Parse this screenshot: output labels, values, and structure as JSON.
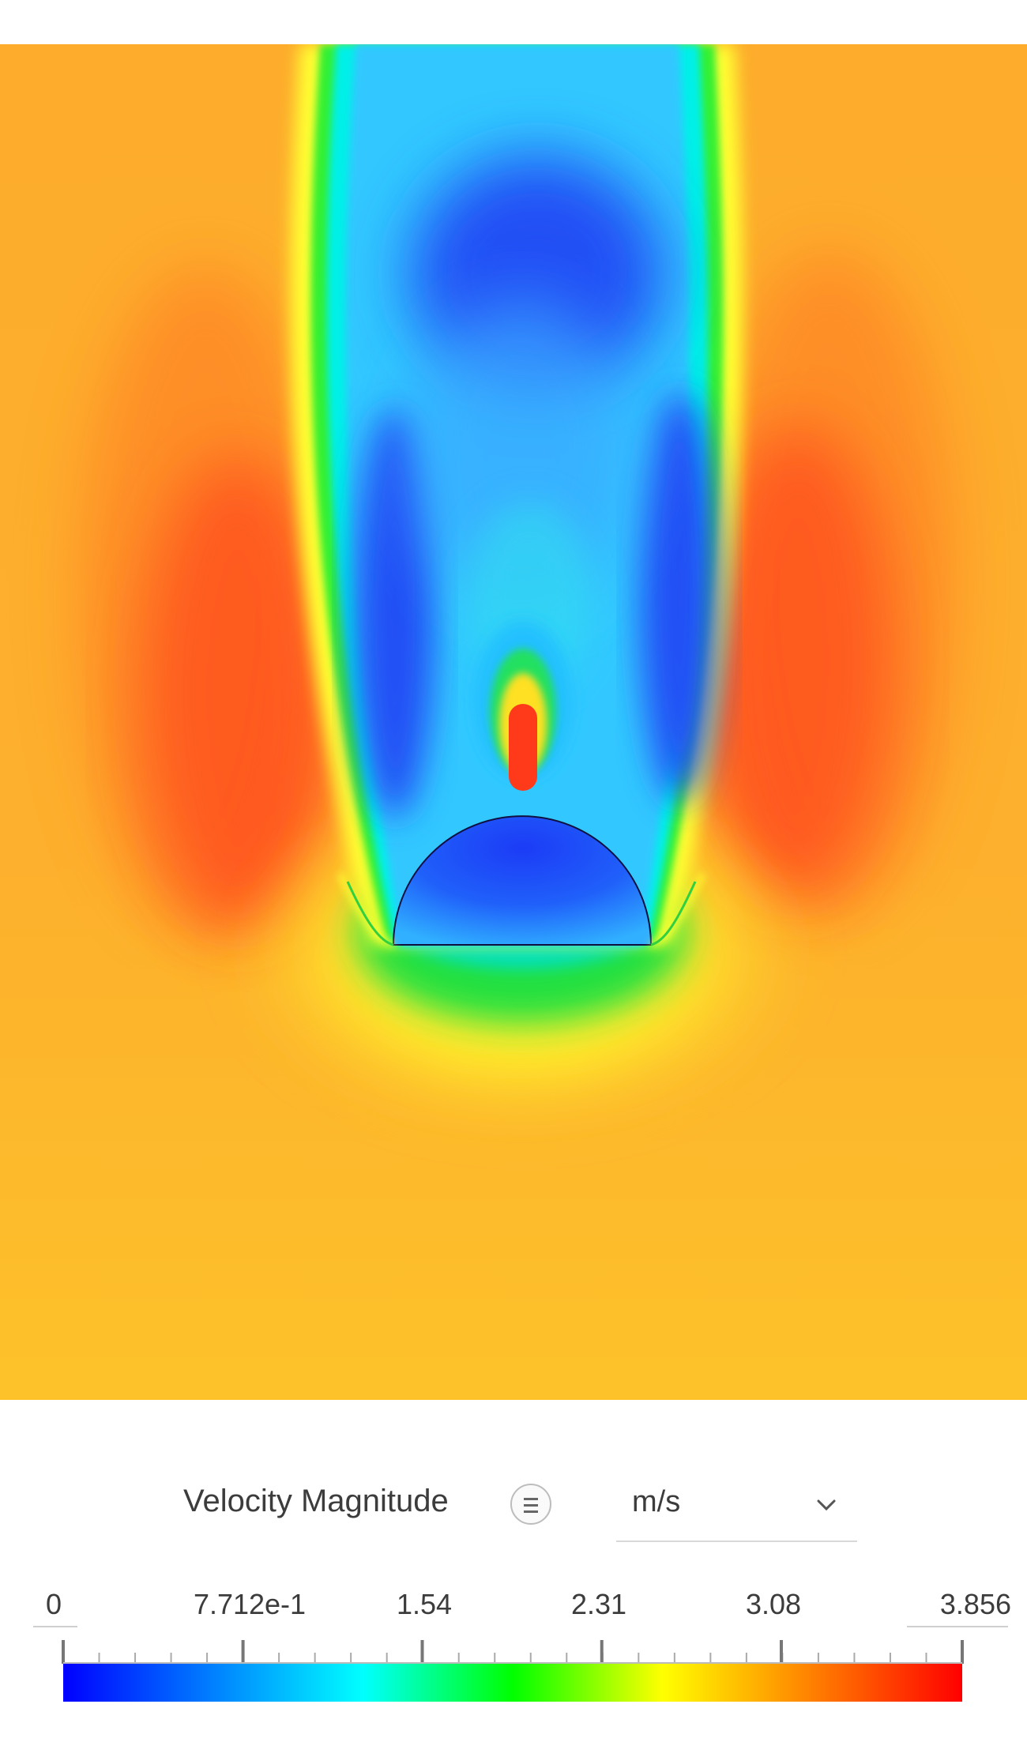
{
  "scalar": {
    "label": "Velocity Magnitude",
    "menu_icon": "menu-lines-icon",
    "unit": "m/s",
    "unit_icon": "chevron-down-icon"
  },
  "colorbar": {
    "min": 0,
    "max": 3.856,
    "tick_labels": [
      "0",
      "7.712e-1",
      "1.54",
      "2.31",
      "3.08",
      "3.856"
    ],
    "tick_values": [
      0,
      0.7712,
      1.54,
      2.31,
      3.08,
      3.856
    ],
    "colormap": [
      "#0000ff",
      "#0080ff",
      "#00ffff",
      "#00ff00",
      "#ffff00",
      "#ff8000",
      "#ff0000"
    ]
  },
  "field": {
    "free_stream_color": "#fdb62e",
    "wake_color": "#30c8ff",
    "stagnation_color": "#ffff30",
    "obstacle": "hemisphere"
  }
}
